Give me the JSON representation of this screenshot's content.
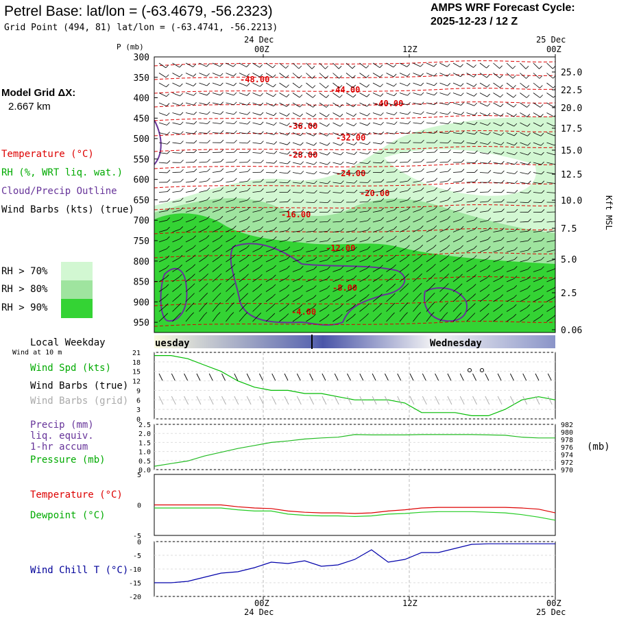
{
  "header": {
    "title": "Petrel Base:  lat/lon = (-63.4679, -56.2323)",
    "grid_point": "Grid Point (494, 81) lat/lon = (-63.4741, -56.2213)",
    "cycle_line1": "AMPS WRF Forecast Cycle:",
    "cycle_line2": "2025-12-23 / 12  Z"
  },
  "model_grid": {
    "label": "Model Grid ΔX:",
    "value": "2.667 km"
  },
  "legend": {
    "temperature": "Temperature (°C)",
    "rh": "RH (%, WRT liq. wat.)",
    "cloud": "Cloud/Precip Outline",
    "wind": "Wind Barbs (kts) (true)",
    "rh70": "RH > 70%",
    "rh80": "RH > 80%",
    "rh90": "RH > 90%"
  },
  "colors": {
    "rh70": "#d2f7d2",
    "rh80": "#9fe49f",
    "rh90": "#34d334",
    "temp": "#dd0000",
    "cloud": "#663399",
    "wind_green": "#00bb00",
    "pressure": "#22bb22",
    "dewpoint": "#22cc22",
    "windchill": "#0000aa",
    "grid_barb": "#aaaaaa"
  },
  "time_axis": {
    "top_labels": [
      {
        "date": "24 Dec",
        "hour": "00Z"
      },
      {
        "date": "",
        "hour": "12Z"
      },
      {
        "date": "25 Dec",
        "hour": "00Z"
      }
    ],
    "bottom_labels": [
      {
        "hour": "00Z",
        "date": "24 Dec"
      },
      {
        "hour": "12Z",
        "date": ""
      },
      {
        "hour": "00Z",
        "date": "25 Dec"
      }
    ]
  },
  "weekday": {
    "label": "Local Weekday",
    "day1": "uesday",
    "day2": "Wednesday"
  },
  "chart_data": [
    {
      "type": "heatmap",
      "name": "cross-section",
      "ylabel_left": "P (mb)",
      "ylabel_right": "Kft MSL",
      "pressure_levels": [
        "300",
        "350",
        "400",
        "450",
        "500",
        "550",
        "600",
        "650",
        "700",
        "750",
        "800",
        "850",
        "900",
        "950"
      ],
      "height_ticks": [
        "25.0",
        "22.5",
        "20.0",
        "17.5",
        "15.0",
        "12.5",
        "10.0",
        "7.5",
        "5.0",
        "2.5",
        "0.06"
      ],
      "temperature_labels": [
        "-48.00",
        "-44.00",
        "-40.00",
        "-36.00",
        "-32.00",
        "-28.00",
        "-24.00",
        "-20.00",
        "-16.00",
        "-12.00",
        "-8.00",
        "-4.00"
      ]
    },
    {
      "type": "line",
      "name": "wind",
      "subtitle": "Wind at 10 m",
      "labels": [
        "Wind Spd (kts)",
        "Wind Barbs (true)",
        "Wind Barbs (grid)"
      ],
      "y_ticks": [
        "21",
        "18",
        "15",
        "12",
        "9",
        "6",
        "3",
        "0"
      ],
      "ylim": [
        0,
        21
      ],
      "x": [
        0,
        1,
        2,
        3,
        4,
        5,
        6,
        7,
        8,
        9,
        10,
        11,
        12,
        13,
        14,
        15,
        16,
        17,
        18,
        19,
        20,
        21,
        22,
        23,
        24
      ],
      "values": [
        20,
        20,
        19,
        17,
        15,
        12,
        10,
        9,
        9,
        8,
        8,
        7,
        6,
        6,
        6,
        5,
        2,
        2,
        2,
        1,
        1,
        3,
        6,
        7,
        6
      ]
    },
    {
      "type": "line",
      "name": "precip-pressure",
      "labels": [
        "Precip (mm)",
        "liq. equiv.",
        "1-hr accum",
        "Pressure (mb)"
      ],
      "y_ticks_left": [
        "2.5",
        "2.0",
        "1.5",
        "1.0",
        "0.5",
        "0.0"
      ],
      "y_ticks_right": [
        "982",
        "980",
        "978",
        "976",
        "974",
        "972",
        "970"
      ],
      "unit_right": "(mb)",
      "ylim_pressure": [
        970,
        982
      ],
      "x": [
        0,
        1,
        2,
        3,
        4,
        5,
        6,
        7,
        8,
        9,
        10,
        11,
        12,
        13,
        14,
        15,
        16,
        17,
        18,
        19,
        20,
        21,
        22,
        23,
        24
      ],
      "pressure": [
        970.9,
        971.6,
        972.3,
        973.6,
        974.6,
        975.6,
        976.4,
        977.2,
        977.6,
        978.1,
        978.4,
        978.6,
        979.3,
        979.2,
        979.2,
        979.2,
        979.3,
        979.3,
        979.3,
        979.3,
        979.2,
        979.1,
        978.6,
        978.4,
        978.4
      ]
    },
    {
      "type": "line",
      "name": "temperature-dewpoint",
      "labels": [
        "Temperature (°C)",
        "Dewpoint (°C)"
      ],
      "y_ticks": [
        "5",
        "0",
        "-5"
      ],
      "ylim": [
        -5,
        5
      ],
      "x": [
        0,
        1,
        2,
        3,
        4,
        5,
        6,
        7,
        8,
        9,
        10,
        11,
        12,
        13,
        14,
        15,
        16,
        17,
        18,
        19,
        20,
        21,
        22,
        23,
        24
      ],
      "temperature": [
        0,
        0,
        0,
        0,
        0,
        -0.3,
        -0.5,
        -0.6,
        -1.0,
        -1.2,
        -1.3,
        -1.3,
        -1.4,
        -1.3,
        -1.0,
        -0.8,
        -0.5,
        -0.4,
        -0.4,
        -0.4,
        -0.4,
        -0.4,
        -0.5,
        -0.7,
        -1.3
      ],
      "dewpoint": [
        -0.5,
        -0.5,
        -0.5,
        -0.5,
        -0.5,
        -0.8,
        -1.0,
        -1.0,
        -1.5,
        -1.7,
        -1.8,
        -1.8,
        -1.9,
        -1.8,
        -1.5,
        -1.4,
        -1.2,
        -1.1,
        -1.1,
        -1.1,
        -1.2,
        -1.3,
        -1.6,
        -2.0,
        -2.5
      ]
    },
    {
      "type": "line",
      "name": "wind-chill",
      "labels": [
        "Wind Chill T (°C)"
      ],
      "y_ticks": [
        "0",
        "-5",
        "-10",
        "-15",
        "-20"
      ],
      "ylim": [
        -20,
        0
      ],
      "x": [
        0,
        1,
        2,
        3,
        4,
        5,
        6,
        7,
        8,
        9,
        10,
        11,
        12,
        13,
        14,
        15,
        16,
        17,
        18,
        19,
        20,
        21,
        22,
        23,
        24
      ],
      "values": [
        -15,
        -15,
        -14.5,
        -13,
        -11.5,
        -11,
        -9.5,
        -7.5,
        -8,
        -7,
        -9,
        -8.5,
        -6.5,
        -3,
        -7.5,
        -6.5,
        -4,
        -4,
        -2.5,
        -1,
        -0.8,
        -0.8,
        -0.8,
        -0.8,
        -0.8
      ]
    }
  ]
}
